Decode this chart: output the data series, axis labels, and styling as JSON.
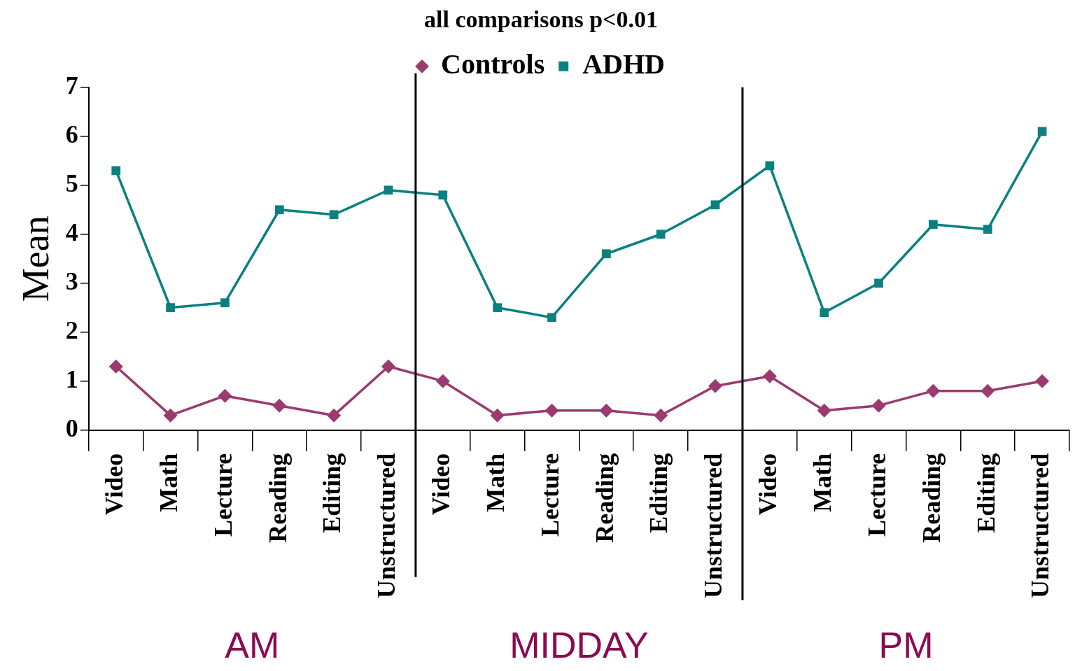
{
  "chart_data": {
    "type": "line",
    "title": "all comparisons p<0.01",
    "ylabel": "Mean",
    "categories": [
      "Video",
      "Math",
      "Lecture",
      "Reading",
      "Editing",
      "Unstructured",
      "Video",
      "Math",
      "Lecture",
      "Reading",
      "Editing",
      "Unstructured",
      "Video",
      "Math",
      "Lecture",
      "Reading",
      "Editing",
      "Unstructured"
    ],
    "series": [
      {
        "name": "Controls",
        "color": "#9b3a6e",
        "marker": "diamond",
        "values": [
          1.3,
          0.3,
          0.7,
          0.5,
          0.3,
          1.3,
          1.0,
          0.3,
          0.4,
          0.4,
          0.3,
          0.9,
          1.1,
          0.4,
          0.5,
          0.8,
          0.8,
          1.0
        ]
      },
      {
        "name": "ADHD",
        "color": "#0a8080",
        "marker": "square",
        "values": [
          5.3,
          2.5,
          2.6,
          4.5,
          4.4,
          4.9,
          4.8,
          2.5,
          2.3,
          3.6,
          4.0,
          4.6,
          5.4,
          2.4,
          3.0,
          4.2,
          4.1,
          6.1
        ]
      }
    ],
    "ylim": [
      0,
      7
    ],
    "yticks": [
      0,
      1,
      2,
      3,
      4,
      5,
      6,
      7
    ],
    "grid": false,
    "legend": "top",
    "line_style": "solid",
    "annotations": [
      "AM",
      "MIDDAY",
      "PM"
    ]
  }
}
